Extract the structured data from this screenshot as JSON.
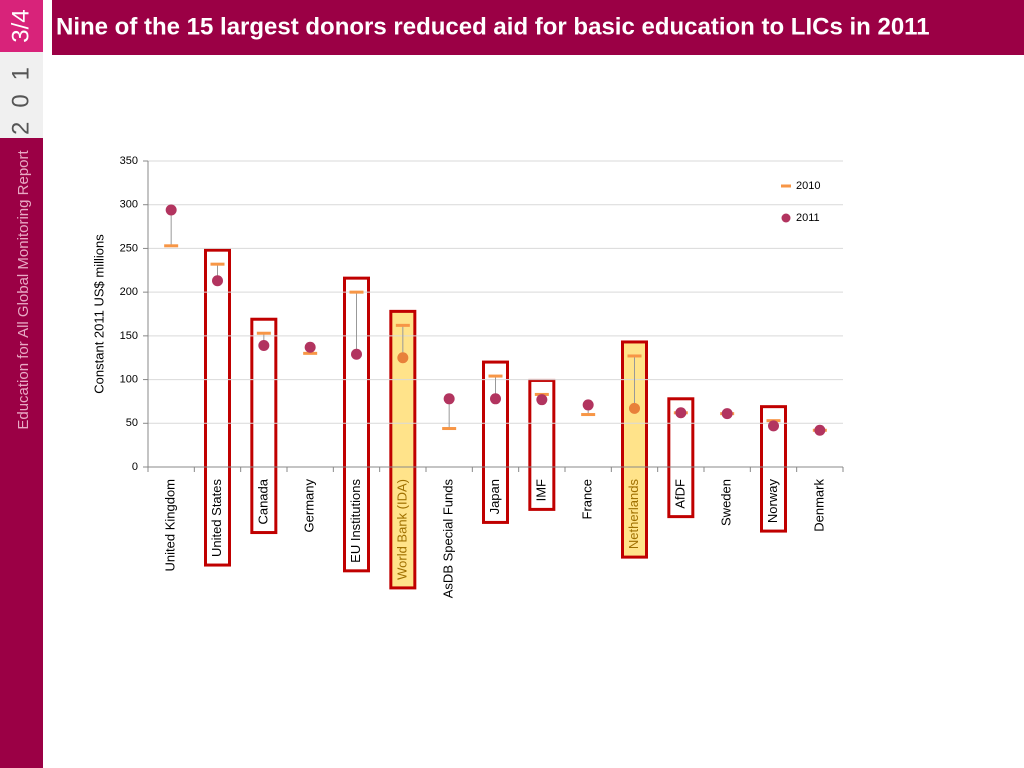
{
  "sidebar": {
    "edition": "3/4",
    "year": "201",
    "label": "Education for All Global Monitoring Report"
  },
  "chart_data": {
    "type": "dot-range",
    "title": "Nine of the 15 largest donors reduced aid for basic education to LICs in 2011",
    "y_label": "Constant 2011 US$ millions",
    "categories": [
      "United Kingdom",
      "United States",
      "Canada",
      "Germany",
      "EU Institutions",
      "World Bank (IDA)",
      "AsDB Special Funds",
      "Japan",
      "IMF",
      "France",
      "Netherlands",
      "AfDF",
      "Sweden",
      "Norway",
      "Denmark"
    ],
    "series": [
      {
        "name": "2010",
        "color": "#f79646",
        "values": [
          253,
          232,
          153,
          130,
          200,
          162,
          44,
          104,
          83,
          60,
          127,
          62,
          61,
          53,
          42
        ]
      },
      {
        "name": "2011",
        "color": "#b2345f",
        "values": [
          294,
          213,
          139,
          137,
          129,
          125,
          78,
          78,
          77,
          71,
          67,
          62,
          61,
          47,
          42
        ]
      }
    ],
    "reduced": [
      false,
      true,
      true,
      false,
      true,
      true,
      false,
      true,
      true,
      false,
      true,
      true,
      false,
      true,
      false
    ],
    "emphasized": [
      false,
      false,
      false,
      false,
      false,
      true,
      false,
      false,
      false,
      false,
      true,
      false,
      false,
      false,
      false
    ],
    "emphasis_color": "#e8803a",
    "ylim": [
      0,
      350
    ],
    "yticks": [
      0,
      50,
      100,
      150,
      200,
      250,
      300,
      350
    ],
    "grid": true,
    "legend": "top-right"
  }
}
